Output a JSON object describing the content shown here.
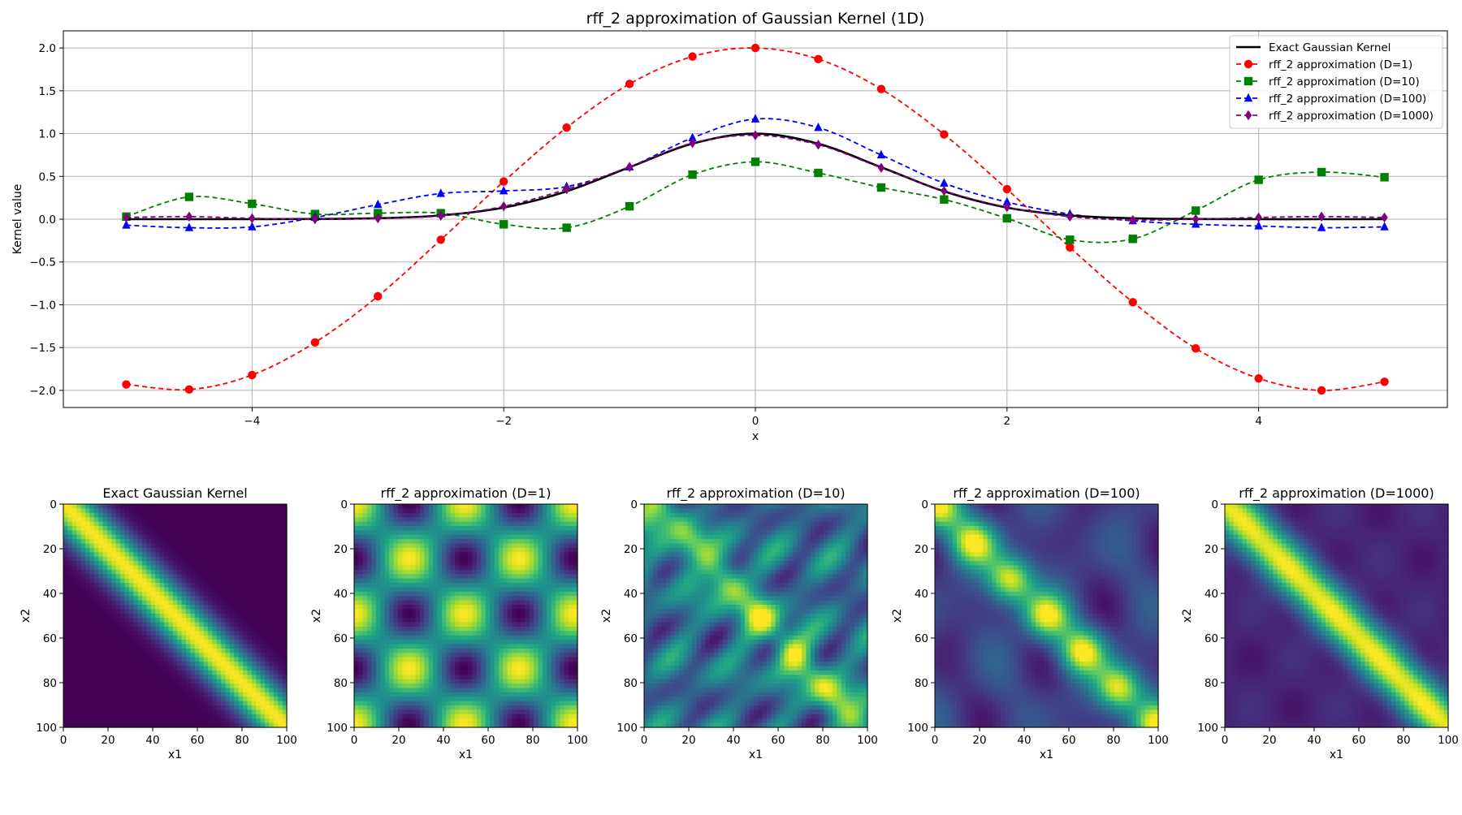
{
  "figure": {
    "title": "rff_2 approximation of Gaussian Kernel (1D)"
  },
  "chart_data": [
    {
      "type": "line",
      "title": "rff_2 approximation of Gaussian Kernel (1D)",
      "xlabel": "x",
      "ylabel": "Kernel value",
      "xlim": [
        -5.5,
        5.5
      ],
      "ylim": [
        -2.2,
        2.2
      ],
      "xticks": [
        "−4",
        "−2",
        "0",
        "2",
        "4"
      ],
      "xtick_values": [
        -4,
        -2,
        0,
        2,
        4
      ],
      "yticks": [
        "−2.0",
        "−1.5",
        "−1.0",
        "−0.5",
        "0.0",
        "0.5",
        "1.0",
        "1.5",
        "2.0"
      ],
      "ytick_values": [
        -2.0,
        -1.5,
        -1.0,
        -0.5,
        0.0,
        0.5,
        1.0,
        1.5,
        2.0
      ],
      "grid": true,
      "legend_position": "top-right",
      "series": [
        {
          "name": "Exact Gaussian Kernel",
          "color": "#000000",
          "dashed": false,
          "marker": "none",
          "x": [
            -5,
            -4.5,
            -4,
            -3.5,
            -3,
            -2.5,
            -2,
            -1.5,
            -1,
            -0.5,
            0,
            0.5,
            1,
            1.5,
            2,
            2.5,
            3,
            3.5,
            4,
            4.5,
            5
          ],
          "y": [
            0.0,
            0.0,
            0.0,
            0.002,
            0.011,
            0.044,
            0.135,
            0.325,
            0.607,
            0.882,
            1.0,
            0.882,
            0.607,
            0.325,
            0.135,
            0.044,
            0.011,
            0.002,
            0.0,
            0.0,
            0.0
          ]
        },
        {
          "name": "rff_2 approximation (D=1)",
          "color": "#ff0000",
          "dashed": true,
          "marker": "circle",
          "x": [
            -5,
            -4.5,
            -4,
            -3.5,
            -3,
            -2.5,
            -2,
            -1.5,
            -1,
            -0.5,
            0,
            0.5,
            1,
            1.5,
            2,
            2.5,
            3,
            3.5,
            4,
            4.5,
            5
          ],
          "y": [
            -1.93,
            -1.99,
            -1.82,
            -1.44,
            -0.9,
            -0.24,
            0.44,
            1.07,
            1.58,
            1.9,
            2.0,
            1.87,
            1.52,
            0.99,
            0.35,
            -0.33,
            -0.97,
            -1.51,
            -1.86,
            -2.0,
            -1.9
          ]
        },
        {
          "name": "rff_2 approximation (D=10)",
          "color": "#008000",
          "dashed": true,
          "marker": "square",
          "x": [
            -5,
            -4.5,
            -4,
            -3.5,
            -3,
            -2.5,
            -2,
            -1.5,
            -1,
            -0.5,
            0,
            0.5,
            1,
            1.5,
            2,
            2.5,
            3,
            3.5,
            4,
            4.5,
            5
          ],
          "y": [
            0.03,
            0.26,
            0.18,
            0.06,
            0.07,
            0.07,
            -0.06,
            -0.1,
            0.15,
            0.52,
            0.67,
            0.54,
            0.37,
            0.23,
            0.01,
            -0.24,
            -0.23,
            0.1,
            0.46,
            0.55,
            0.49
          ]
        },
        {
          "name": "rff_2 approximation (D=100)",
          "color": "#0000ff",
          "dashed": true,
          "marker": "triangle",
          "x": [
            -5,
            -4.5,
            -4,
            -3.5,
            -3,
            -2.5,
            -2,
            -1.5,
            -1,
            -0.5,
            0,
            0.5,
            1,
            1.5,
            2,
            2.5,
            3,
            3.5,
            4,
            4.5,
            5
          ],
          "y": [
            -0.07,
            -0.1,
            -0.09,
            0.02,
            0.17,
            0.3,
            0.33,
            0.38,
            0.61,
            0.95,
            1.17,
            1.07,
            0.75,
            0.42,
            0.2,
            0.06,
            -0.02,
            -0.06,
            -0.08,
            -0.1,
            -0.09
          ]
        },
        {
          "name": "rff_2 approximation (D=1000)",
          "color": "#800080",
          "dashed": true,
          "marker": "diamond",
          "x": [
            -5,
            -4.5,
            -4,
            -3.5,
            -3,
            -2.5,
            -2,
            -1.5,
            -1,
            -0.5,
            0,
            0.5,
            1,
            1.5,
            2,
            2.5,
            3,
            3.5,
            4,
            4.5,
            5
          ],
          "y": [
            0.02,
            0.03,
            0.01,
            0.0,
            0.01,
            0.04,
            0.15,
            0.35,
            0.61,
            0.89,
            0.98,
            0.87,
            0.6,
            0.33,
            0.14,
            0.03,
            -0.01,
            0.0,
            0.02,
            0.03,
            0.02
          ]
        }
      ]
    },
    {
      "type": "heatmap",
      "title": "Exact Gaussian Kernel",
      "xlabel": "x1",
      "ylabel": "x2",
      "xticks": [
        "0",
        "20",
        "40",
        "60",
        "80",
        "100"
      ],
      "yticks": [
        "0",
        "20",
        "40",
        "60",
        "80",
        "100"
      ],
      "range": [
        0,
        100
      ],
      "colormap": "viridis",
      "pattern": "exact"
    },
    {
      "type": "heatmap",
      "title": "rff_2 approximation (D=1)",
      "xlabel": "x1",
      "ylabel": "x2",
      "xticks": [
        "0",
        "20",
        "40",
        "60",
        "80",
        "100"
      ],
      "yticks": [
        "0",
        "20",
        "40",
        "60",
        "80",
        "100"
      ],
      "range": [
        0,
        100
      ],
      "colormap": "viridis",
      "pattern": "d1"
    },
    {
      "type": "heatmap",
      "title": "rff_2 approximation (D=10)",
      "xlabel": "x1",
      "ylabel": "x2",
      "xticks": [
        "0",
        "20",
        "40",
        "60",
        "80",
        "100"
      ],
      "yticks": [
        "0",
        "20",
        "40",
        "60",
        "80",
        "100"
      ],
      "range": [
        0,
        100
      ],
      "colormap": "viridis",
      "pattern": "d10"
    },
    {
      "type": "heatmap",
      "title": "rff_2 approximation (D=100)",
      "xlabel": "x1",
      "ylabel": "x2",
      "xticks": [
        "0",
        "20",
        "40",
        "60",
        "80",
        "100"
      ],
      "yticks": [
        "0",
        "20",
        "40",
        "60",
        "80",
        "100"
      ],
      "range": [
        0,
        100
      ],
      "colormap": "viridis",
      "pattern": "d100"
    },
    {
      "type": "heatmap",
      "title": "rff_2 approximation (D=1000)",
      "xlabel": "x1",
      "ylabel": "x2",
      "xticks": [
        "0",
        "20",
        "40",
        "60",
        "80",
        "100"
      ],
      "yticks": [
        "0",
        "20",
        "40",
        "60",
        "80",
        "100"
      ],
      "range": [
        0,
        100
      ],
      "colormap": "viridis",
      "pattern": "d1000"
    }
  ]
}
